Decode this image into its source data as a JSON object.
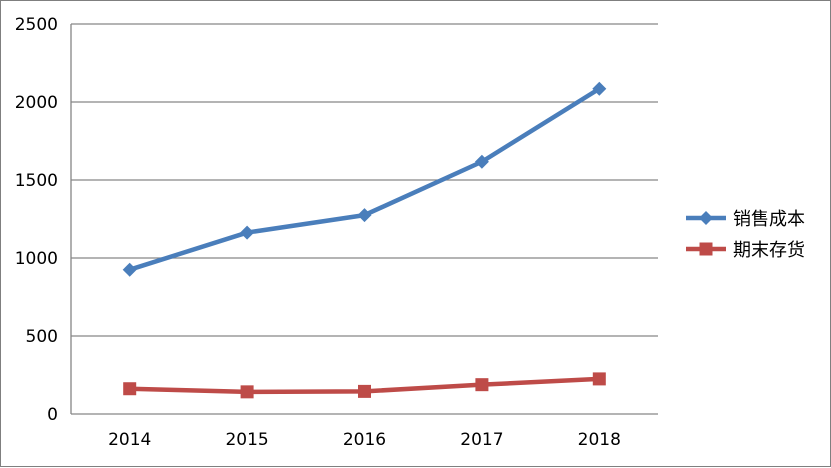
{
  "chart_data": {
    "type": "line",
    "categories": [
      "2014",
      "2015",
      "2016",
      "2017",
      "2018"
    ],
    "x": [
      "2014",
      "2015",
      "2016",
      "2017",
      "2018"
    ],
    "ylim": [
      0,
      2500
    ],
    "yticks": [
      0,
      500,
      1000,
      1500,
      2000,
      2500
    ],
    "grid": true,
    "legend_position": "right",
    "series": [
      {
        "name": "销售成本",
        "values": [
          925,
          1163,
          1275,
          1617,
          2085
        ],
        "color": "#4a7ebb",
        "marker": "diamond"
      },
      {
        "name": "期末存货",
        "values": [
          162,
          142,
          145,
          188,
          225
        ],
        "color": "#be4b48",
        "marker": "square"
      }
    ]
  }
}
